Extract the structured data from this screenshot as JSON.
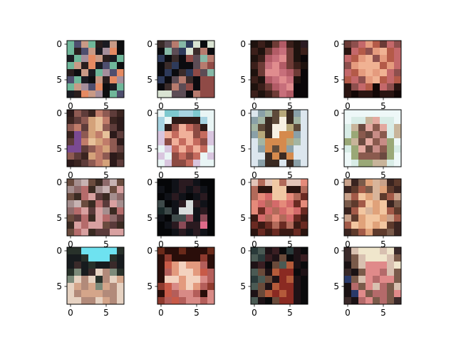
{
  "figure": {
    "background": "#ffffff",
    "axes_color": "#000000"
  },
  "chart_data": {
    "type": "heatmap",
    "description_grid": {
      "rows": 4,
      "cols": 4
    },
    "image_size": [
      8,
      8
    ],
    "tick_values": [
      0,
      5
    ],
    "panels": [
      {
        "name": "panel-1",
        "x_ticks": [
          "0",
          "5"
        ],
        "y_ticks": [
          "0",
          "5"
        ],
        "palette": [
          "#2a1e1e",
          "#6fb79a",
          "#4e4e6e",
          "#c99a86",
          "#1b1b22",
          "#e58a62",
          "#a58e9b",
          "#0e0e10"
        ],
        "pixels": [
          "12310437",
          "10234657",
          "41653041",
          "13054217",
          "07341625",
          "21473056",
          "13625741",
          "40536712"
        ]
      },
      {
        "name": "panel-2",
        "x_ticks": [
          "0",
          "5"
        ],
        "y_ticks": [
          "0",
          "5"
        ],
        "palette": [
          "#3a2b2a",
          "#86b8a6",
          "#0b0b0f",
          "#5c4c55",
          "#d9e3d2",
          "#b77b6e",
          "#2e3a5a",
          "#8f4a46"
        ],
        "pixels": [
          "03516424",
          "21364052",
          "62027315",
          "20622357",
          "26206731",
          "62350277",
          "20537277",
          "44332577"
        ]
      },
      {
        "name": "panel-3",
        "x_ticks": [
          "0",
          "5"
        ],
        "y_ticks": [
          "0",
          "5"
        ],
        "palette": [
          "#1e120e",
          "#3b1f1a",
          "#6e3b36",
          "#b25b66",
          "#e08c8e",
          "#2a1a22",
          "#c76f7b",
          "#0a0608"
        ],
        "pixels": [
          "01023105",
          "10236201",
          "01364207",
          "12643210",
          "02446327",
          "10364607",
          "01236477",
          "10126377"
        ]
      },
      {
        "name": "panel-4",
        "x_ticks": [
          "0",
          "5"
        ],
        "y_ticks": [
          "0",
          "5"
        ],
        "palette": [
          "#6b3a36",
          "#c4686a",
          "#e59b7e",
          "#2a1512",
          "#b45a48",
          "#f0b293",
          "#8e4f4d",
          "#120706"
        ],
        "pixels": [
          "06124016",
          "31462541",
          "14256241",
          "62555421",
          "14252516",
          "41625414",
          "36147163",
          "37337337"
        ]
      },
      {
        "name": "panel-5",
        "x_ticks": [
          "0",
          "5"
        ],
        "y_ticks": [
          "0",
          "5"
        ],
        "palette": [
          "#3a2420",
          "#8e5a52",
          "#d4a27a",
          "#7a4a92",
          "#2c1a1a",
          "#c07c6a",
          "#5e3c3a",
          "#e7c19a"
        ],
        "pixels": [
          "41605160",
          "06127504",
          "15627164",
          "03125746",
          "63572514",
          "33615216",
          "16025140",
          "40615246"
        ]
      },
      {
        "name": "panel-6",
        "x_ticks": [
          "0",
          "5"
        ],
        "y_ticks": [
          "0",
          "5"
        ],
        "palette": [
          "#e9f5f5",
          "#7ec9cf",
          "#2d1a17",
          "#f0b09a",
          "#c56b5e",
          "#8c4b43",
          "#d9c6df",
          "#a7d3e1"
        ],
        "pixels": [
          "01177100",
          "70222270",
          "72534520",
          "63433546",
          "65343456",
          "06434340",
          "60545406",
          "06554600"
        ]
      },
      {
        "name": "panel-7",
        "x_ticks": [
          "0",
          "5"
        ],
        "y_ticks": [
          "0",
          "5"
        ],
        "palette": [
          "#dce6ee",
          "#a3b5a3",
          "#5e4a3a",
          "#f7f0e2",
          "#d58a4d",
          "#3a2a22",
          "#b7a87a",
          "#8aa0a8"
        ],
        "pixels": [
          "07126570",
          "71523510",
          "12533620",
          "76534470",
          "01444610",
          "07424700",
          "00545400",
          "07550570"
        ]
      },
      {
        "name": "panel-8",
        "x_ticks": [
          "0",
          "5"
        ],
        "y_ticks": [
          "0",
          "5"
        ],
        "palette": [
          "#eef8f8",
          "#d8ece6",
          "#c8b49a",
          "#9aa877",
          "#6b4a40",
          "#e3a9a0",
          "#8a5a4e",
          "#c78c86"
        ],
        "pixels": [
          "00000000",
          "01125110",
          "12456512",
          "13647612",
          "32456730",
          "13547631",
          "03666430",
          "01332210"
        ]
      },
      {
        "name": "panel-9",
        "x_ticks": [
          "0",
          "5"
        ],
        "y_ticks": [
          "0",
          "5"
        ],
        "palette": [
          "#6a4b3e",
          "#a58e8e",
          "#c7b2b2",
          "#3a2a22",
          "#8e6a6a",
          "#b56b6b",
          "#d8a0a0",
          "#5a3a3a"
        ],
        "pixels": [
          "01203420",
          "14531206",
          "03567314",
          "12035761",
          "45676135",
          "07536547",
          "36566073",
          "05637766"
        ]
      },
      {
        "name": "panel-10",
        "x_ticks": [
          "0",
          "5"
        ],
        "y_ticks": [
          "0",
          "5"
        ],
        "palette": [
          "#050608",
          "#101218",
          "#2a1a20",
          "#3e4a4a",
          "#d8dcdc",
          "#8a4a56",
          "#1a2a2a",
          "#e06a8a"
        ],
        "pixels": [
          "00122100",
          "10121210",
          "01210120",
          "30124210",
          "63144120",
          "10335150",
          "01252270",
          "00121210"
        ]
      },
      {
        "name": "panel-11",
        "x_ticks": [
          "0",
          "5"
        ],
        "y_ticks": [
          "0",
          "5"
        ],
        "palette": [
          "#e3c4b8",
          "#2a1410",
          "#b26a5a",
          "#e58a7a",
          "#6a2a22",
          "#d46a6a",
          "#f0c8a4",
          "#3a1a14"
        ],
        "pixels": [
          "02062003",
          "21166112",
          "23566324",
          "35253543",
          "34525354",
          "75232547",
          "47424274",
          "14747741"
        ]
      },
      {
        "name": "panel-12",
        "x_ticks": [
          "0",
          "5"
        ],
        "y_ticks": [
          "0",
          "5"
        ],
        "palette": [
          "#7a5a4a",
          "#c9a18a",
          "#3a2420",
          "#e0a27a",
          "#d8b49a",
          "#a35a48",
          "#f2c6a0",
          "#5e3a2c"
        ],
        "pixels": [
          "12034127",
          "27504372",
          "15634751",
          "07563620",
          "25643657",
          "17366315",
          "56363672",
          "27537702"
        ]
      },
      {
        "name": "panel-13",
        "x_ticks": [
          "0",
          "5"
        ],
        "y_ticks": [
          "0",
          "5"
        ],
        "palette": [
          "#28312a",
          "#6ee2f0",
          "#171b1e",
          "#7c8a7a",
          "#e6d2c2",
          "#b28a7a",
          "#d4a58a",
          "#3a2a2a"
        ],
        "pixels": [
          "00111110",
          "22011102",
          "27202272",
          "03274530",
          "34540546",
          "46563654",
          "45666554",
          "44554654"
        ]
      },
      {
        "name": "panel-14",
        "x_ticks": [
          "0",
          "5"
        ],
        "y_ticks": [
          "0",
          "5"
        ],
        "palette": [
          "#6a2a1a",
          "#2a0e0a",
          "#c85a48",
          "#f3d2bf",
          "#e39a7e",
          "#8e3a2e",
          "#b45e5a",
          "#d88a86"
        ],
        "pixels": [
          "01101110",
          "15111151",
          "12434461",
          "16433426",
          "13343376",
          "52743465",
          "12677617",
          "56267767"
        ]
      },
      {
        "name": "panel-15",
        "x_ticks": [
          "0",
          "5"
        ],
        "y_ticks": [
          "0",
          "5"
        ],
        "palette": [
          "#2a3a3a",
          "#0a0a0c",
          "#3a1e22",
          "#6a4a3a",
          "#b45a3a",
          "#4a5a54",
          "#8a2a22",
          "#1e1216"
        ],
        "pixels": [
          "05721071",
          "50273172",
          "72135471",
          "53746617",
          "05376471",
          "53746671",
          "73464671",
          "57136671"
        ]
      },
      {
        "name": "panel-16",
        "x_ticks": [
          "0",
          "5"
        ],
        "y_ticks": [
          "0",
          "5"
        ],
        "palette": [
          "#3a2a2a",
          "#d8c0b0",
          "#f0e6cc",
          "#e08a8a",
          "#7a5a4a",
          "#1a1214",
          "#b46a6a",
          "#2a3a6a"
        ],
        "pixels": [
          "01222120",
          "04122214",
          "54133312",
          "05433614",
          "74136334",
          "56431641",
          "57346643",
          "05634640"
        ]
      }
    ]
  }
}
